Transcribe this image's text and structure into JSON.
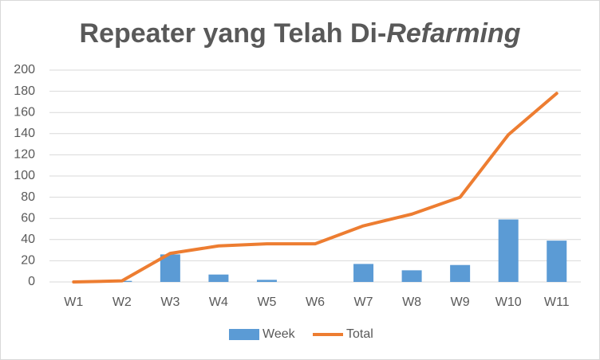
{
  "chart_data": {
    "type": "bar-line",
    "title": [
      "Repeater yang Telah Di-",
      "Refarming"
    ],
    "categories": [
      "W1",
      "W2",
      "W3",
      "W4",
      "W5",
      "W6",
      "W7",
      "W8",
      "W9",
      "W10",
      "W11"
    ],
    "series": [
      {
        "name": "Week",
        "type": "bar",
        "color": "#5b9bd5",
        "values": [
          0,
          1,
          26,
          7,
          2,
          0,
          17,
          11,
          16,
          59,
          39
        ]
      },
      {
        "name": "Total",
        "type": "line",
        "color": "#ed7d31",
        "values": [
          0,
          1,
          27,
          34,
          36,
          36,
          53,
          64,
          80,
          139,
          178
        ]
      }
    ],
    "ylim": [
      0,
      200
    ],
    "yticks": [
      0,
      20,
      40,
      60,
      80,
      100,
      120,
      140,
      160,
      180,
      200
    ],
    "grid": true,
    "legend": "bottom"
  }
}
